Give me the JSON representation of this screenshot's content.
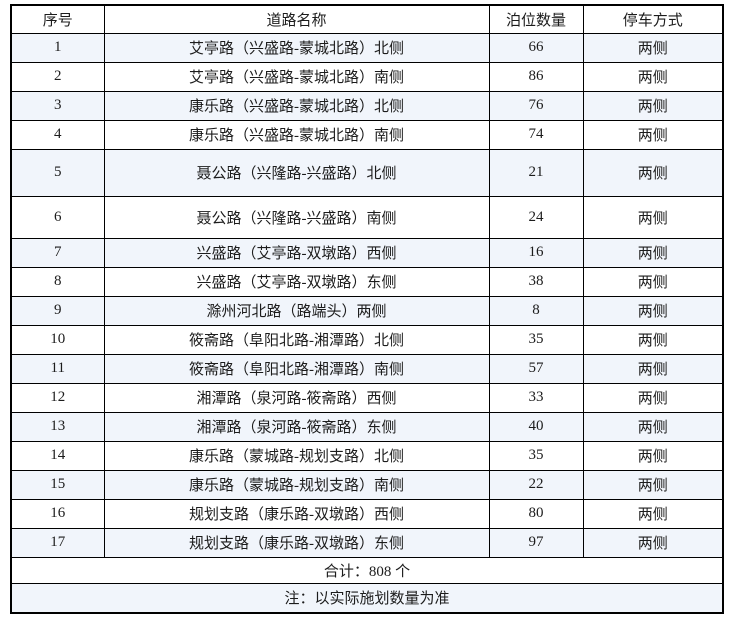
{
  "table": {
    "headers": [
      "序号",
      "道路名称",
      "泊位数量",
      "停车方式"
    ],
    "rows": [
      {
        "no": "1",
        "road": "艾亭路（兴盛路-蒙城北路）北侧",
        "count": "66",
        "mode": "两侧"
      },
      {
        "no": "2",
        "road": "艾亭路（兴盛路-蒙城北路）南侧",
        "count": "86",
        "mode": "两侧"
      },
      {
        "no": "3",
        "road": "康乐路（兴盛路-蒙城北路）北侧",
        "count": "76",
        "mode": "两侧"
      },
      {
        "no": "4",
        "road": "康乐路（兴盛路-蒙城北路）南侧",
        "count": "74",
        "mode": "两侧"
      },
      {
        "no": "5",
        "road": "聂公路（兴隆路-兴盛路）北侧",
        "count": "21",
        "mode": "两侧"
      },
      {
        "no": "6",
        "road": "聂公路（兴隆路-兴盛路）南侧",
        "count": "24",
        "mode": "两侧"
      },
      {
        "no": "7",
        "road": "兴盛路（艾亭路-双墩路）西侧",
        "count": "16",
        "mode": "两侧"
      },
      {
        "no": "8",
        "road": "兴盛路（艾亭路-双墩路）东侧",
        "count": "38",
        "mode": "两侧"
      },
      {
        "no": "9",
        "road": "滁州河北路（路端头）两侧",
        "count": "8",
        "mode": "两侧"
      },
      {
        "no": "10",
        "road": "筱斋路（阜阳北路-湘潭路）北侧",
        "count": "35",
        "mode": "两侧"
      },
      {
        "no": "11",
        "road": "筱斋路（阜阳北路-湘潭路）南侧",
        "count": "57",
        "mode": "两侧"
      },
      {
        "no": "12",
        "road": "湘潭路（泉河路-筱斋路）西侧",
        "count": "33",
        "mode": "两侧"
      },
      {
        "no": "13",
        "road": "湘潭路（泉河路-筱斋路）东侧",
        "count": "40",
        "mode": "两侧"
      },
      {
        "no": "14",
        "road": "康乐路（蒙城路-规划支路）北侧",
        "count": "35",
        "mode": "两侧"
      },
      {
        "no": "15",
        "road": "康乐路（蒙城路-规划支路）南侧",
        "count": "22",
        "mode": "两侧"
      },
      {
        "no": "16",
        "road": "规划支路（康乐路-双墩路）西侧",
        "count": "80",
        "mode": "两侧"
      },
      {
        "no": "17",
        "road": "规划支路（康乐路-双墩路）东侧",
        "count": "97",
        "mode": "两侧"
      }
    ],
    "total": "合计：808 个",
    "note": "注：以实际施划数量为准"
  },
  "colors": {
    "stripe": "#f1f5fb",
    "border": "#000000",
    "text": "#1c1c1c"
  }
}
